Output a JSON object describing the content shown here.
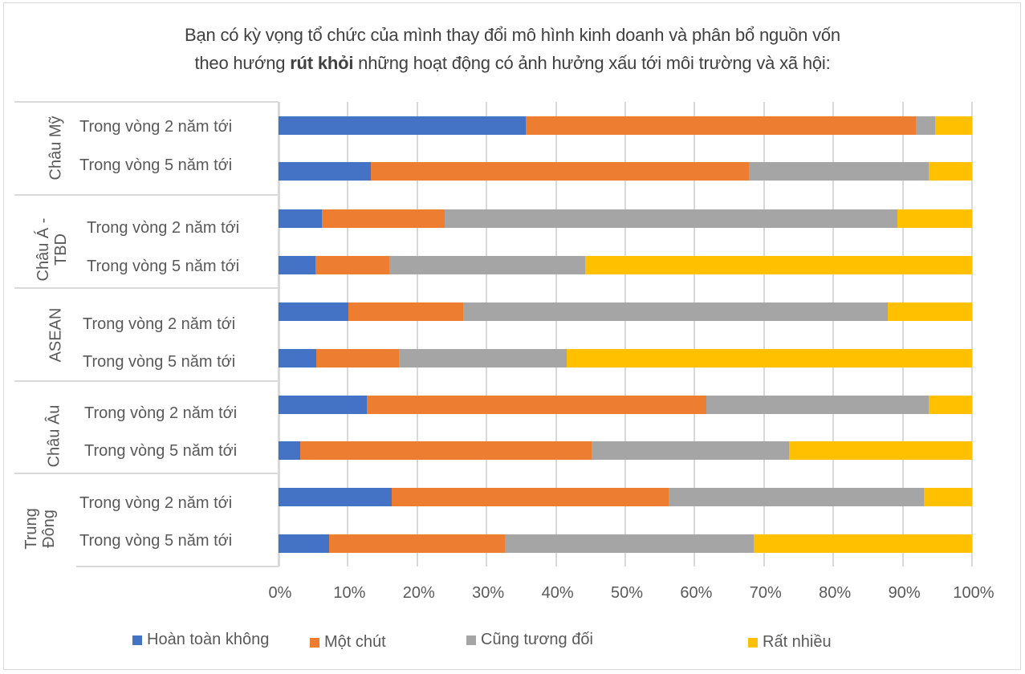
{
  "title": {
    "line1": "Bạn có kỳ vọng tổ chức của mình thay đổi mô hình kinh doanh và phân bổ nguồn vốn",
    "line2_pre": "theo hướng ",
    "line2_bold": "rút khỏi",
    "line2_post": " những hoạt động có ảnh hưởng xấu tới môi trường và xã hội:"
  },
  "colors": {
    "hoan_toan_khong": "#4472c4",
    "mot_chut": "#ed7d31",
    "cung_tuong_doi": "#a5a5a5",
    "rat_nhieu": "#ffc000",
    "gridline": "#d9d9d9",
    "text": "#595959"
  },
  "groups": [
    {
      "label": "Châu Mỹ"
    },
    {
      "label": "Châu Á -\nTBD"
    },
    {
      "label": "ASEAN"
    },
    {
      "label": "Châu Âu"
    },
    {
      "label": "Trung\nĐông"
    }
  ],
  "row_labels": [
    "Trong vòng 2 năm tới",
    "Trong vòng 5 năm tới",
    "Trong vòng 2 năm tới",
    "Trong vòng 5 năm tới",
    "Trong vòng 2 năm tới",
    "Trong vòng 5 năm tới",
    "Trong vòng 2 năm tới",
    "Trong vòng 5 năm tới",
    "Trong vòng 2 năm tới",
    "Trong vòng 5 năm tới"
  ],
  "x_ticks": [
    "0%",
    "10%",
    "20%",
    "30%",
    "40%",
    "50%",
    "60%",
    "70%",
    "80%",
    "90%",
    "100%"
  ],
  "legend": [
    {
      "label": "Hoàn toàn không",
      "color": "#4472c4"
    },
    {
      "label": "Một chút",
      "color": "#ed7d31"
    },
    {
      "label": "Cũng tương đối",
      "color": "#a5a5a5"
    },
    {
      "label": "Rất nhiều",
      "color": "#ffc000"
    }
  ],
  "chart_data": {
    "type": "bar",
    "orientation": "horizontal",
    "stacked": "percent",
    "title": "Bạn có kỳ vọng tổ chức của mình thay đổi mô hình kinh doanh và phân bổ nguồn vốn theo hướng rút khỏi những hoạt động có ảnh hưởng xấu tới môi trường và xã hội:",
    "xlabel": "",
    "ylabel": "",
    "xlim": [
      0,
      100
    ],
    "x_tick_labels": [
      "0%",
      "10%",
      "20%",
      "30%",
      "40%",
      "50%",
      "60%",
      "70%",
      "80%",
      "90%",
      "100%"
    ],
    "grid": true,
    "legend_position": "bottom",
    "categories": [
      "Châu Mỹ | Trong vòng 2 năm tới",
      "Châu Mỹ | Trong vòng 5 năm tới",
      "Châu Á - TBD | Trong vòng 2 năm tới",
      "Châu Á - TBD | Trong vòng 5 năm tới",
      "ASEAN | Trong vòng 2 năm tới",
      "ASEAN | Trong vòng 5 năm tới",
      "Châu Âu | Trong vòng 2 năm tới",
      "Châu Âu | Trong vòng 5 năm tới",
      "Trung Đông | Trong vòng 2 năm tới",
      "Trung Đông | Trong vòng 5 năm tới"
    ],
    "series": [
      {
        "name": "Hoàn toàn không",
        "color": "#4472c4",
        "values": [
          35.6,
          13.3,
          6.3,
          5.3,
          10.1,
          5.4,
          12.7,
          3.1,
          16.3,
          7.3
        ]
      },
      {
        "name": "Một chút",
        "color": "#ed7d31",
        "values": [
          56.3,
          54.5,
          17.7,
          10.7,
          16.5,
          12.0,
          49.0,
          42.0,
          39.9,
          25.3
        ]
      },
      {
        "name": "Cũng tương đối",
        "color": "#a5a5a5",
        "values": [
          2.8,
          26.0,
          65.2,
          28.2,
          61.2,
          24.2,
          32.1,
          28.5,
          36.9,
          35.9
        ]
      },
      {
        "name": "Rất nhiều",
        "color": "#ffc000",
        "values": [
          5.3,
          6.2,
          10.8,
          55.8,
          12.2,
          58.4,
          6.2,
          26.4,
          6.9,
          31.5
        ]
      }
    ]
  }
}
